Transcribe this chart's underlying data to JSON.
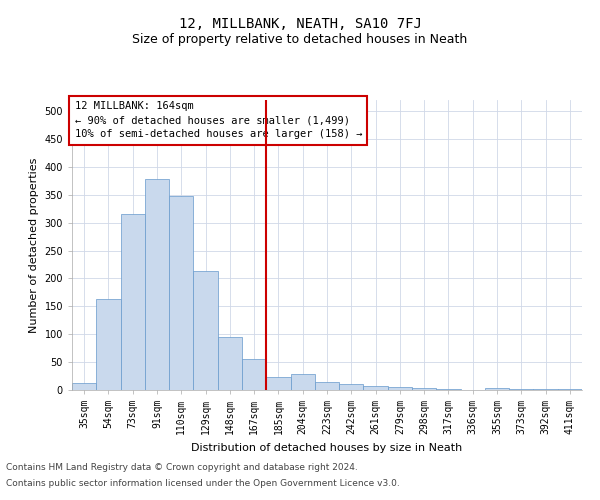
{
  "title": "12, MILLBANK, NEATH, SA10 7FJ",
  "subtitle": "Size of property relative to detached houses in Neath",
  "xlabel": "Distribution of detached houses by size in Neath",
  "ylabel": "Number of detached properties",
  "categories": [
    "35sqm",
    "54sqm",
    "73sqm",
    "91sqm",
    "110sqm",
    "129sqm",
    "148sqm",
    "167sqm",
    "185sqm",
    "204sqm",
    "223sqm",
    "242sqm",
    "261sqm",
    "279sqm",
    "298sqm",
    "317sqm",
    "336sqm",
    "355sqm",
    "373sqm",
    "392sqm",
    "411sqm"
  ],
  "values": [
    13,
    163,
    315,
    378,
    348,
    213,
    95,
    55,
    23,
    28,
    14,
    10,
    7,
    5,
    3,
    1,
    0,
    4,
    1,
    1,
    2
  ],
  "bar_color": "#c9d9ed",
  "bar_edge_color": "#6699cc",
  "vline_x_index": 7,
  "vline_color": "#cc0000",
  "annotation_line1": "12 MILLBANK: 164sqm",
  "annotation_line2": "← 90% of detached houses are smaller (1,499)",
  "annotation_line3": "10% of semi-detached houses are larger (158) →",
  "annotation_box_color": "#cc0000",
  "ylim": [
    0,
    520
  ],
  "yticks": [
    0,
    50,
    100,
    150,
    200,
    250,
    300,
    350,
    400,
    450,
    500
  ],
  "footer1": "Contains HM Land Registry data © Crown copyright and database right 2024.",
  "footer2": "Contains public sector information licensed under the Open Government Licence v3.0.",
  "bg_color": "#ffffff",
  "grid_color": "#d0d8e8",
  "title_fontsize": 10,
  "subtitle_fontsize": 9,
  "axis_label_fontsize": 8,
  "tick_fontsize": 7,
  "annotation_fontsize": 7.5,
  "footer_fontsize": 6.5
}
